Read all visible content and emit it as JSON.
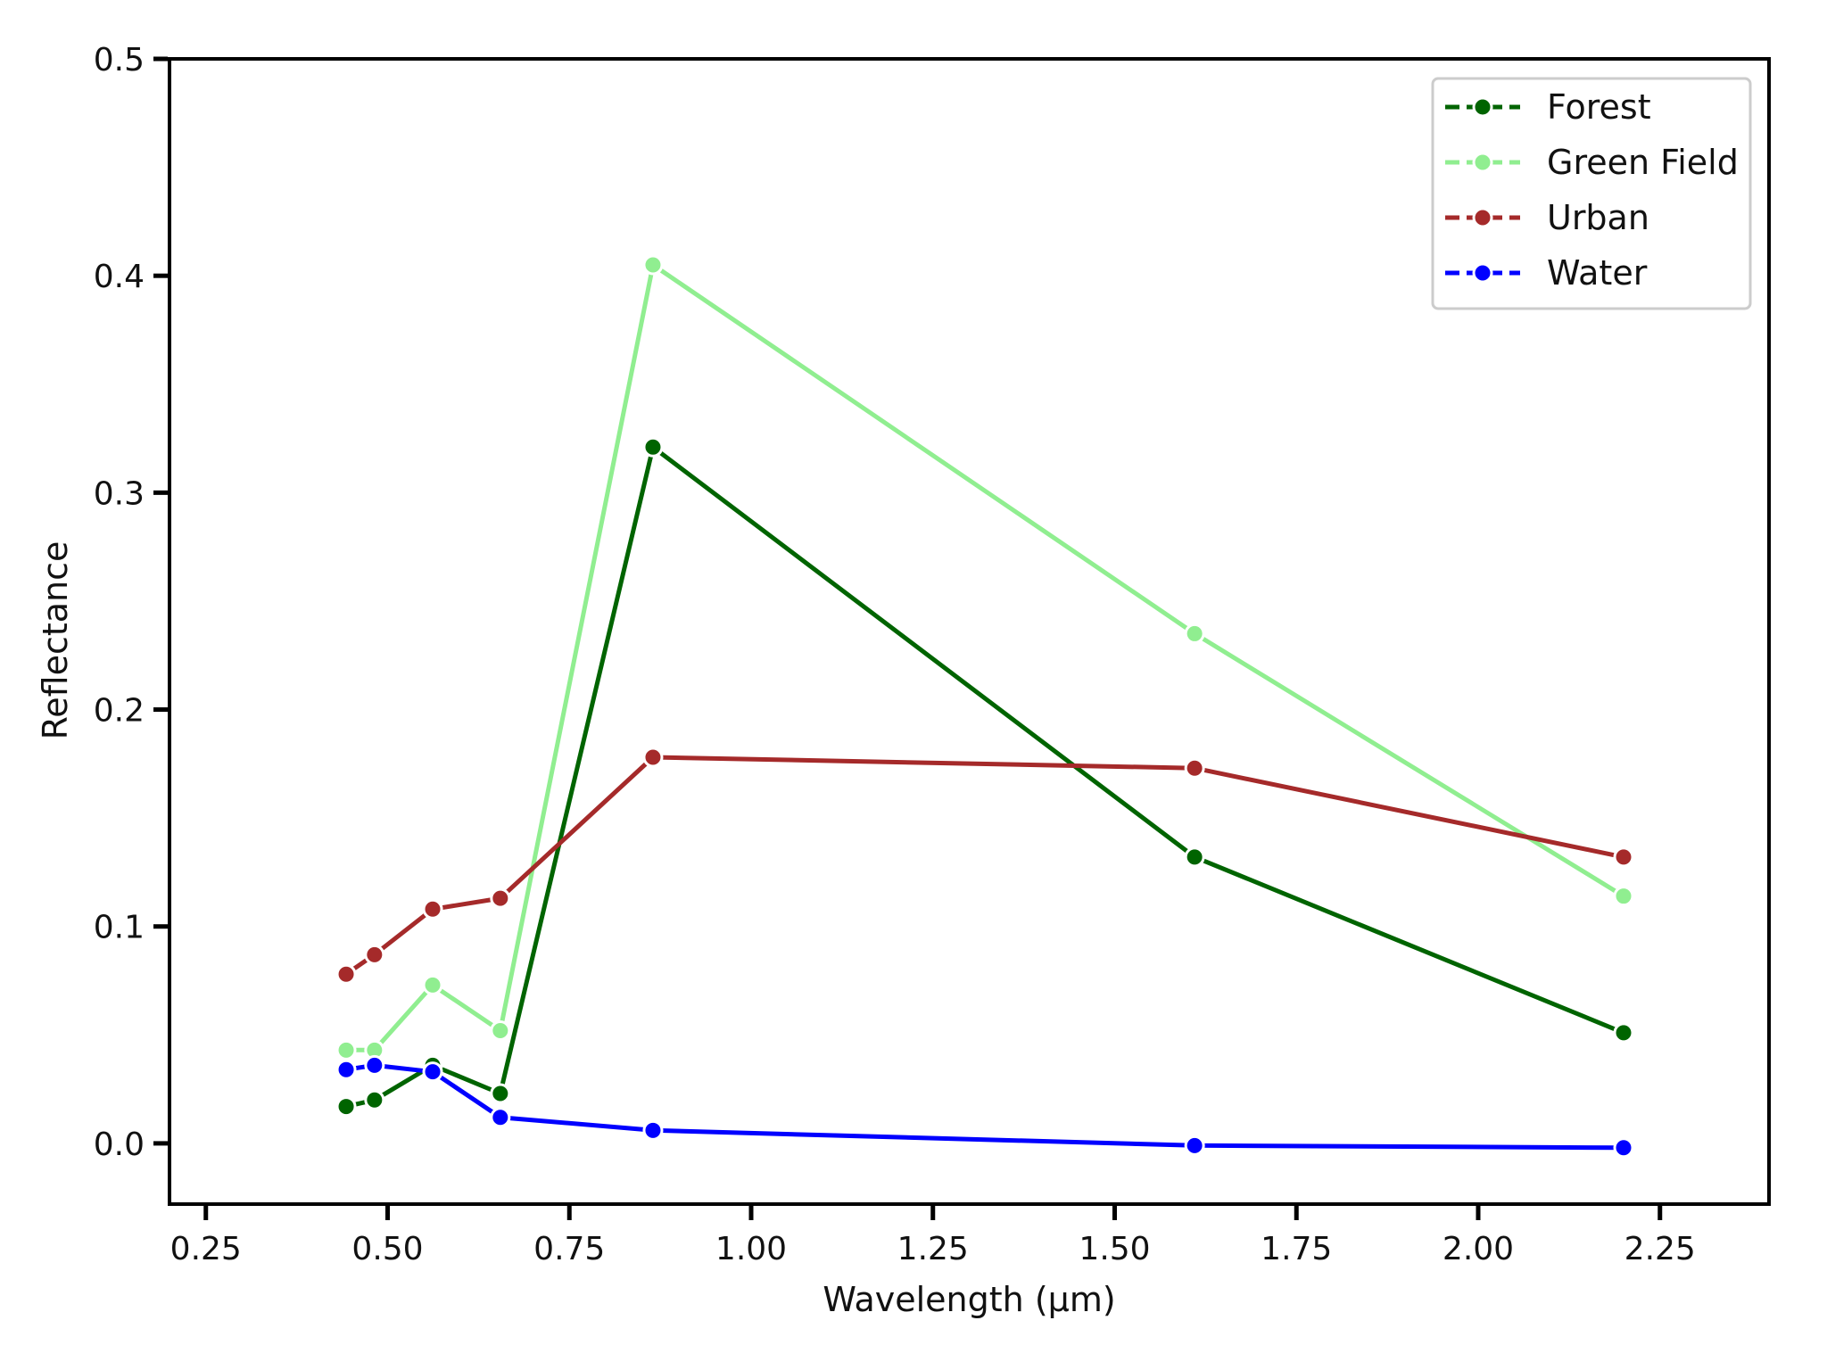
{
  "chart_data": {
    "type": "line",
    "title": "",
    "xlabel": "Wavelength (μm)",
    "ylabel": "Reflectance",
    "xlim": [
      0.2,
      2.4
    ],
    "ylim": [
      -0.028,
      0.5
    ],
    "xticks": [
      0.25,
      0.5,
      0.75,
      1.0,
      1.25,
      1.5,
      1.75,
      2.0,
      2.25
    ],
    "xtick_labels": [
      "0.25",
      "0.50",
      "0.75",
      "1.00",
      "1.25",
      "1.50",
      "1.75",
      "2.00",
      "2.25"
    ],
    "yticks": [
      0.0,
      0.1,
      0.2,
      0.3,
      0.4,
      0.5
    ],
    "ytick_labels": [
      "0.0",
      "0.1",
      "0.2",
      "0.3",
      "0.4",
      "0.5"
    ],
    "grid": false,
    "legend_position": "top-right",
    "series": [
      {
        "name": "Forest",
        "color": "#006400",
        "x": [
          0.443,
          0.482,
          0.562,
          0.655,
          0.865,
          1.61,
          2.2
        ],
        "y": [
          0.017,
          0.02,
          0.036,
          0.023,
          0.321,
          0.132,
          0.051
        ]
      },
      {
        "name": "Green Field",
        "color": "#90EE90",
        "x": [
          0.443,
          0.482,
          0.562,
          0.655,
          0.865,
          1.61,
          2.2
        ],
        "y": [
          0.043,
          0.043,
          0.073,
          0.052,
          0.405,
          0.235,
          0.114
        ]
      },
      {
        "name": "Urban",
        "color": "#A52A2A",
        "x": [
          0.443,
          0.482,
          0.562,
          0.655,
          0.865,
          1.61,
          2.2
        ],
        "y": [
          0.078,
          0.087,
          0.108,
          0.113,
          0.178,
          0.173,
          0.132
        ]
      },
      {
        "name": "Water",
        "color": "#0000FF",
        "x": [
          0.443,
          0.482,
          0.562,
          0.655,
          0.865,
          1.61,
          2.2
        ],
        "y": [
          0.034,
          0.036,
          0.033,
          0.012,
          0.006,
          -0.001,
          -0.002
        ]
      }
    ]
  }
}
